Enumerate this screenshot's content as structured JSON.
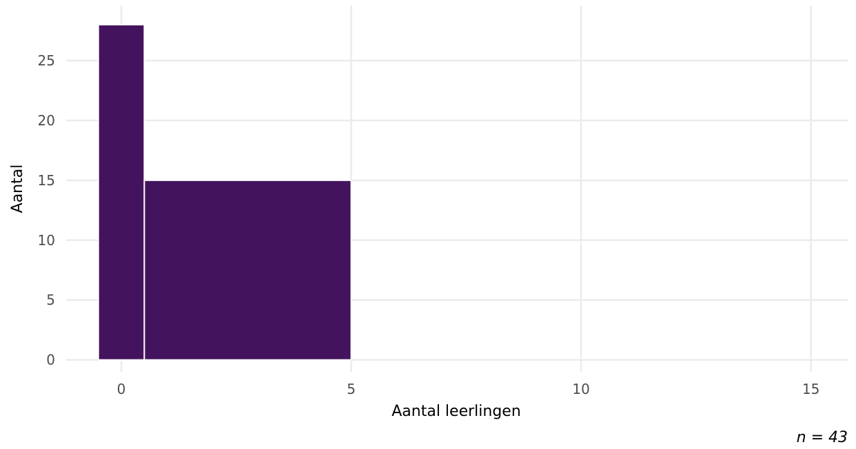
{
  "chart_data": {
    "type": "bar",
    "subtype": "histogram",
    "bins": [
      {
        "x_start": -0.5,
        "x_end": 0.5,
        "value": 28
      },
      {
        "x_start": 0.5,
        "x_end": 5,
        "value": 15
      }
    ],
    "xlabel": "Aantal leerlingen",
    "ylabel": "Aantal",
    "caption": "n = 43",
    "xlim": [
      -1.2,
      15.8
    ],
    "ylim": [
      -1,
      29.6
    ],
    "x_ticks": [
      0,
      5,
      10,
      15
    ],
    "y_ticks": [
      0,
      5,
      10,
      15,
      20,
      25
    ],
    "grid": true,
    "legend": "none",
    "colors": {
      "bar": "#43145d",
      "grid": "#ebebeb",
      "background": "#ffffff"
    }
  }
}
